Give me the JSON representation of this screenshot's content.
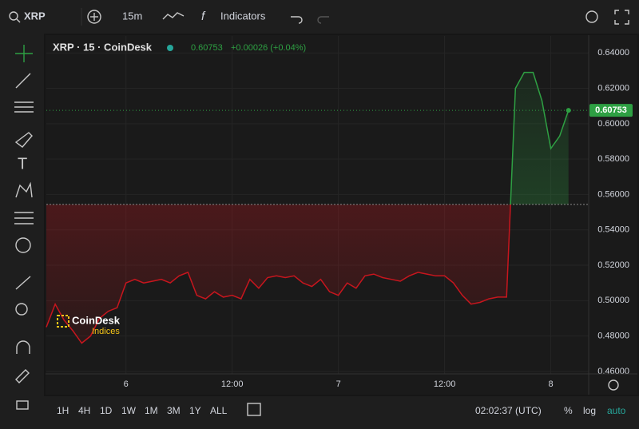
{
  "toolbar": {
    "symbol": "XRP",
    "interval": "15m",
    "indicators": "Indicators"
  },
  "chart_data": {
    "type": "line",
    "title": "XRP · 15 · CoinDesk",
    "last_change": "+0.00026 (+0.04%)",
    "categories": [
      null,
      null,
      null,
      null,
      null,
      null,
      null,
      null,
      null,
      "6",
      null,
      null,
      null,
      null,
      null,
      null,
      null,
      null,
      null,
      null,
      null,
      "12:00",
      null,
      null,
      null,
      null,
      null,
      null,
      null,
      null,
      null,
      null,
      null,
      "7",
      null,
      null,
      null,
      null,
      null,
      null,
      null,
      null,
      null,
      null,
      null,
      "12:00",
      null,
      null,
      null,
      null,
      null,
      null,
      null,
      null,
      null,
      null,
      null,
      "8",
      null,
      null
    ],
    "values": [
      0.485,
      0.498,
      0.489,
      0.483,
      0.476,
      0.48,
      0.49,
      0.494,
      0.496,
      0.51,
      0.512,
      0.51,
      0.511,
      0.512,
      0.51,
      0.514,
      0.516,
      0.503,
      0.501,
      0.505,
      0.502,
      0.503,
      0.501,
      0.512,
      0.507,
      0.513,
      0.514,
      0.513,
      0.514,
      0.51,
      0.508,
      0.512,
      0.505,
      0.503,
      0.51,
      0.507,
      0.514,
      0.515,
      0.513,
      0.512,
      0.511,
      0.514,
      0.516,
      0.515,
      0.514,
      0.514,
      0.51,
      0.503,
      0.498,
      0.499,
      0.501,
      0.502,
      0.502,
      0.62,
      0.629,
      0.629,
      0.613,
      0.586,
      0.593,
      0.60753
    ],
    "baseline": 0.5544,
    "up_color": "#2ea043",
    "down_color": "#c8151d",
    "ylim": [
      0.4586,
      0.6496
    ],
    "yticks": [
      {
        "value": 0.46,
        "label": "0.46000"
      },
      {
        "value": 0.48,
        "label": "0.48000"
      },
      {
        "value": 0.5,
        "label": "0.50000"
      },
      {
        "value": 0.52,
        "label": "0.52000"
      },
      {
        "value": 0.54,
        "label": "0.54000"
      },
      {
        "value": 0.56,
        "label": "0.56000"
      },
      {
        "value": 0.58,
        "label": "0.58000"
      },
      {
        "value": 0.6,
        "label": "0.60000"
      },
      {
        "value": 0.62,
        "label": "0.62000"
      },
      {
        "value": 0.64,
        "label": "0.64000"
      }
    ],
    "grid": true
  },
  "watermark": {
    "name": "CoinDesk",
    "sub": "Indices"
  },
  "bottom_bar": {
    "ranges": [
      "1H",
      "4H",
      "1D",
      "1W",
      "1M",
      "3M",
      "1Y",
      "ALL"
    ],
    "clock": "02:02:37 (UTC)",
    "modes": [
      "%",
      "log",
      "auto"
    ]
  }
}
